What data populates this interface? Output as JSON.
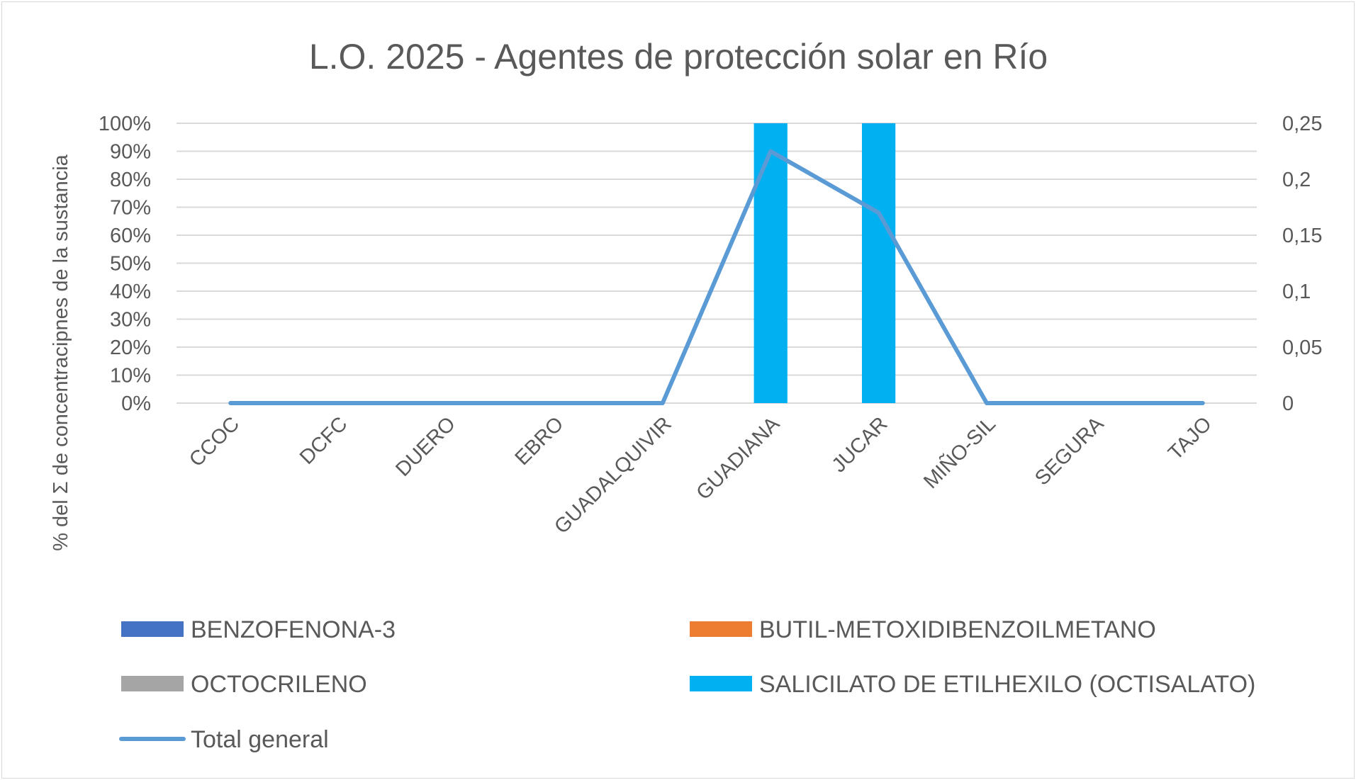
{
  "chart_data": {
    "type": "bar",
    "title": "L.O. 2025 - Agentes de protección solar en Río",
    "ylabel": "% del Σ de concentracipnes de la sustancia",
    "y2label": "",
    "categories": [
      "CCOC",
      "DCFC",
      "DUERO",
      "EBRO",
      "GUADALQUIVIR",
      "GUADIANA",
      "JUCAR",
      "MIÑO-SIL",
      "SEGURA",
      "TAJO"
    ],
    "ylim": [
      0,
      1
    ],
    "yticks": [
      "0%",
      "10%",
      "20%",
      "30%",
      "40%",
      "50%",
      "60%",
      "70%",
      "80%",
      "90%",
      "100%"
    ],
    "y2lim": [
      0,
      0.25
    ],
    "y2ticks": [
      "0",
      "0,05",
      "0,1",
      "0,15",
      "0,2",
      "0,25"
    ],
    "stacked_percent": true,
    "grid": true,
    "legend_position": "bottom",
    "series": [
      {
        "name": "BENZOFENONA-3",
        "type": "bar",
        "color": "#4472c4",
        "values": [
          0,
          0,
          0,
          0,
          0,
          0,
          0,
          0,
          0,
          0
        ]
      },
      {
        "name": "BUTIL-METOXIDIBENZOILMETANO",
        "type": "bar",
        "color": "#ed7d31",
        "values": [
          0,
          0,
          0,
          0,
          0,
          0,
          0,
          0,
          0,
          0
        ]
      },
      {
        "name": "OCTOCRILENO",
        "type": "bar",
        "color": "#a5a5a5",
        "values": [
          0,
          0,
          0,
          0,
          0,
          0,
          0,
          0,
          0,
          0
        ]
      },
      {
        "name": "SALICILATO DE ETILHEXILO (OCTISALATO)",
        "type": "bar",
        "color": "#00b0f0",
        "values": [
          0,
          0,
          0,
          0,
          0,
          1,
          1,
          0,
          0,
          0
        ]
      },
      {
        "name": "Total general",
        "type": "line",
        "axis": "secondary",
        "color": "#5b9bd5",
        "values": [
          0,
          0,
          0,
          0,
          0,
          0.225,
          0.17,
          0,
          0,
          0
        ]
      }
    ]
  }
}
